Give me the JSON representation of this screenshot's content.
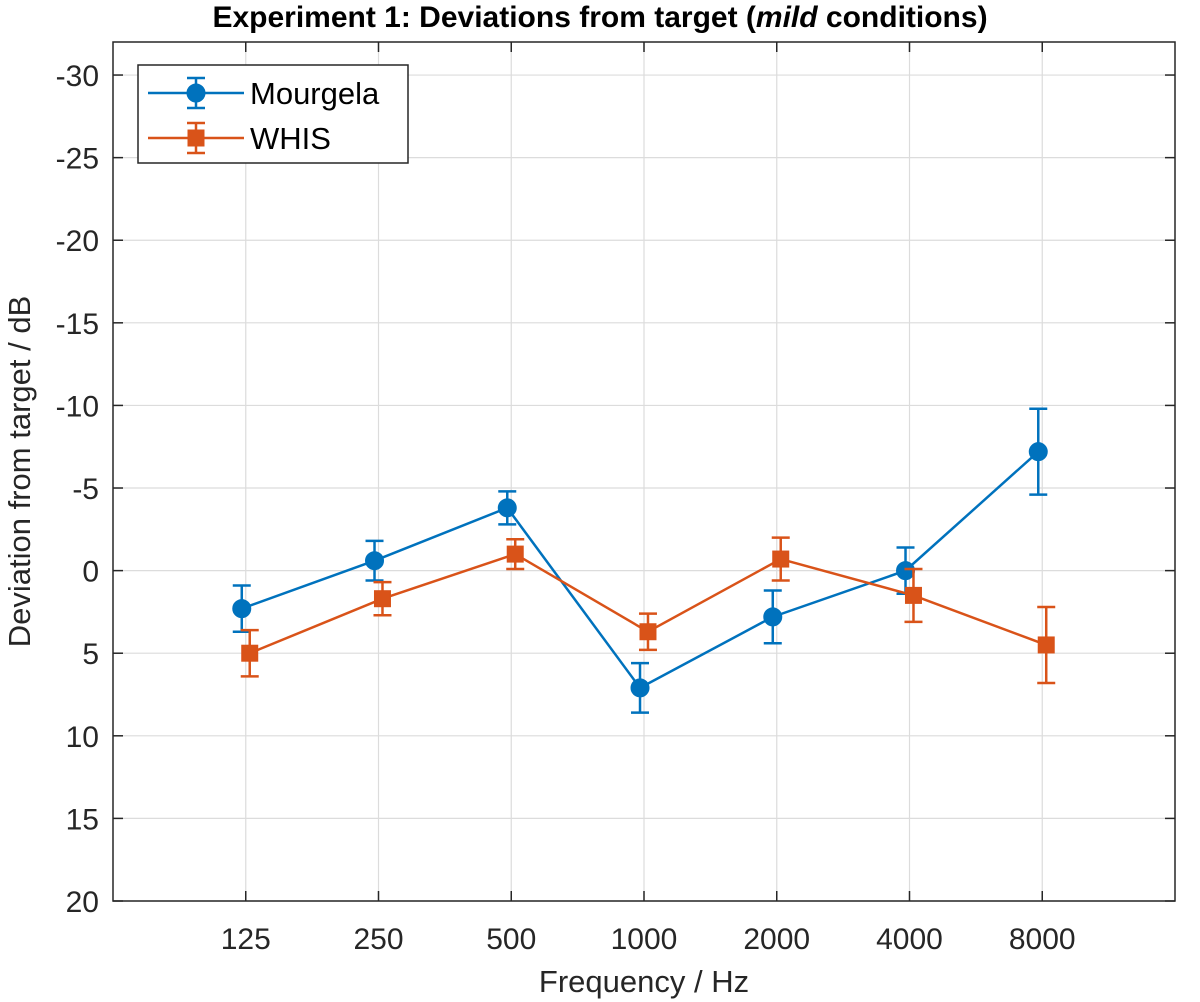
{
  "chart_data": {
    "type": "line",
    "title_prefix": "Experiment 1: Deviations from target (",
    "title_emphasis": "mild",
    "title_suffix": " conditions)",
    "xlabel": "Frequency / Hz",
    "ylabel": "Deviation from target / dB",
    "categories": [
      "125",
      "250",
      "500",
      "1000",
      "2000",
      "4000",
      "8000"
    ],
    "xlim": [
      0,
      8
    ],
    "ylim": [
      -32,
      20
    ],
    "y_reversed": true,
    "y_ticks": [
      -30,
      -25,
      -20,
      -15,
      -10,
      -5,
      0,
      5,
      10,
      15,
      20
    ],
    "grid": true,
    "legend_position": "top-left",
    "series": [
      {
        "name": "Mourgela",
        "color": "#0072BD",
        "marker": "circle",
        "x": [
          0.97,
          1.97,
          2.97,
          3.97,
          4.97,
          5.97,
          6.97
        ],
        "values": [
          2.3,
          -0.6,
          -3.8,
          7.1,
          2.8,
          0.0,
          -7.2
        ],
        "errors": [
          1.4,
          1.2,
          1.0,
          1.5,
          1.6,
          1.4,
          2.6
        ]
      },
      {
        "name": "WHIS",
        "color": "#D95319",
        "marker": "square",
        "x": [
          1.03,
          2.03,
          3.03,
          4.03,
          5.03,
          6.03,
          7.03
        ],
        "values": [
          5.0,
          1.7,
          -1.0,
          3.7,
          -0.7,
          1.5,
          4.5
        ],
        "errors": [
          1.4,
          1.0,
          0.9,
          1.1,
          1.3,
          1.6,
          2.3
        ]
      }
    ]
  }
}
